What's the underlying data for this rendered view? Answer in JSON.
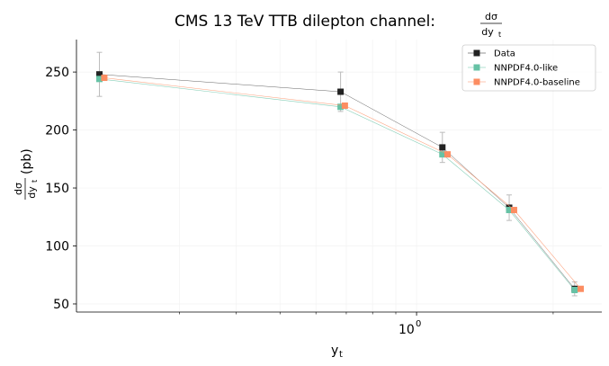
{
  "chart_data": {
    "type": "line",
    "title": "CMS 13 TeV TTB dilepton channel:",
    "title_frac_num": "dσ",
    "title_frac_den": "dy",
    "title_frac_den_sub": "t",
    "xlabel": "y",
    "xlabel_sub": "t",
    "ylabel_frac_num": "dσ",
    "ylabel_frac_den": "dy",
    "ylabel_frac_den_sub": "t",
    "ylabel_unit": "(pb)",
    "x_scale": "log",
    "x_tick_label_base": "10",
    "x_tick_label_exp": "0",
    "x_major_tick": 1.0,
    "x_minor_ticks": [
      0.3,
      0.4,
      0.5,
      0.6,
      0.7,
      0.8,
      0.9,
      2.0
    ],
    "xlim": [
      0.178,
      2.56
    ],
    "ylim": [
      43,
      278
    ],
    "y_ticks": [
      50,
      100,
      150,
      200,
      250
    ],
    "grid": true,
    "legend_position": "top-right",
    "series": [
      {
        "name": "Data",
        "color": "#222222",
        "marker": "square",
        "x": [
          0.2,
          0.68,
          1.14,
          1.6,
          2.23
        ],
        "y": [
          248,
          233,
          185,
          133,
          63
        ],
        "yerr": [
          19,
          17,
          13,
          11,
          6
        ]
      },
      {
        "name": "NNPDF4.0-like",
        "color": "#66c2a5",
        "marker": "square",
        "x": [
          0.2,
          0.68,
          1.14,
          1.6,
          2.23
        ],
        "y": [
          244,
          220,
          179,
          131,
          62
        ],
        "yerr": []
      },
      {
        "name": "NNPDF4.0-baseline",
        "color": "#fc8d62",
        "marker": "square",
        "x": [
          0.205,
          0.695,
          1.17,
          1.64,
          2.3
        ],
        "y": [
          245,
          221,
          179,
          131,
          63
        ],
        "yerr": []
      }
    ]
  }
}
